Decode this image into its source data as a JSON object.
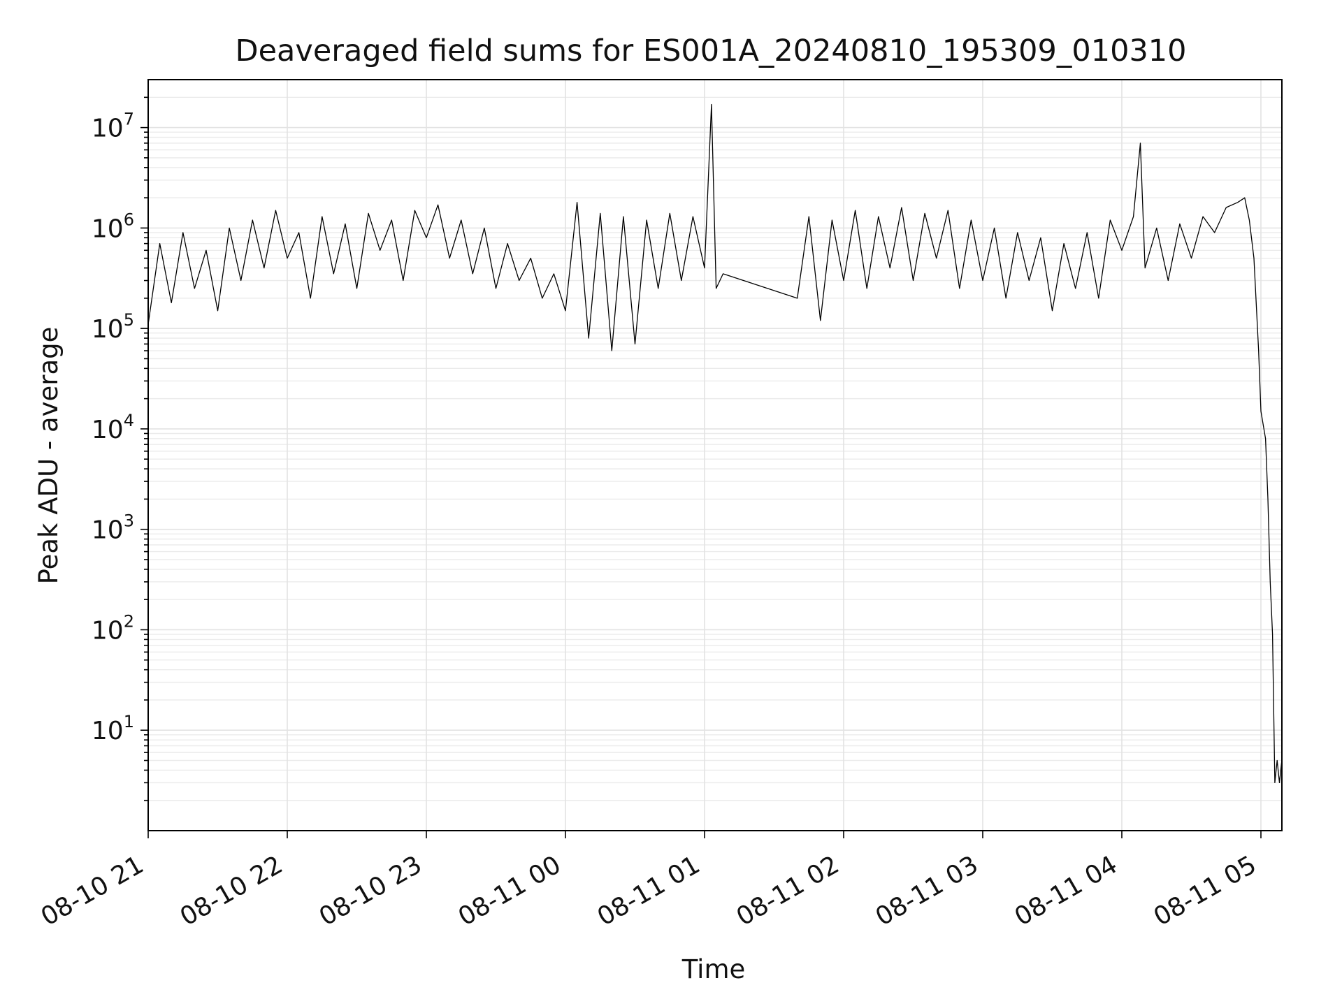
{
  "chart_data": {
    "type": "line",
    "title": "Deaveraged field sums for ES001A_20240810_195309_010310",
    "xlabel": "Time",
    "ylabel": "Peak ADU - average",
    "yscale": "log",
    "ylim": [
      1.0,
      30000000
    ],
    "xlim": [
      "2024-08-10 21:00",
      "2024-08-11 05:09"
    ],
    "grid": "on",
    "legend": "none",
    "line_color": "#000000",
    "x_ticks": [
      "08-10 21",
      "08-10 22",
      "08-10 23",
      "08-11 00",
      "08-11 01",
      "08-11 02",
      "08-11 03",
      "08-11 04",
      "08-11 05"
    ],
    "y_ticks": [
      {
        "value": 10,
        "base": "10",
        "exp": "1"
      },
      {
        "value": 100,
        "base": "10",
        "exp": "2"
      },
      {
        "value": 1000,
        "base": "10",
        "exp": "3"
      },
      {
        "value": 10000,
        "base": "10",
        "exp": "4"
      },
      {
        "value": 100000,
        "base": "10",
        "exp": "5"
      },
      {
        "value": 1000000,
        "base": "10",
        "exp": "6"
      },
      {
        "value": 10000000,
        "base": "10",
        "exp": "7"
      }
    ],
    "series": [
      {
        "x": [
          "2024-08-10 21:00",
          "2024-08-10 21:05",
          "2024-08-10 21:10",
          "2024-08-10 21:15",
          "2024-08-10 21:20",
          "2024-08-10 21:25",
          "2024-08-10 21:30",
          "2024-08-10 21:35",
          "2024-08-10 21:40",
          "2024-08-10 21:45",
          "2024-08-10 21:50",
          "2024-08-10 21:55",
          "2024-08-10 22:00",
          "2024-08-10 22:05",
          "2024-08-10 22:10",
          "2024-08-10 22:15",
          "2024-08-10 22:20",
          "2024-08-10 22:25",
          "2024-08-10 22:30",
          "2024-08-10 22:35",
          "2024-08-10 22:40",
          "2024-08-10 22:45",
          "2024-08-10 22:50",
          "2024-08-10 22:55",
          "2024-08-10 23:00",
          "2024-08-10 23:05",
          "2024-08-10 23:10",
          "2024-08-10 23:15",
          "2024-08-10 23:20",
          "2024-08-10 23:25",
          "2024-08-10 23:30",
          "2024-08-10 23:35",
          "2024-08-10 23:40",
          "2024-08-10 23:45",
          "2024-08-10 23:50",
          "2024-08-10 23:55",
          "2024-08-11 00:00",
          "2024-08-11 00:05",
          "2024-08-11 00:10",
          "2024-08-11 00:15",
          "2024-08-11 00:20",
          "2024-08-11 00:25",
          "2024-08-11 00:30",
          "2024-08-11 00:35",
          "2024-08-11 00:40",
          "2024-08-11 00:45",
          "2024-08-11 00:50",
          "2024-08-11 00:55",
          "2024-08-11 01:00",
          "2024-08-11 01:03",
          "2024-08-11 01:05",
          "2024-08-11 01:08",
          "2024-08-11 01:40",
          "2024-08-11 01:45",
          "2024-08-11 01:50",
          "2024-08-11 01:55",
          "2024-08-11 02:00",
          "2024-08-11 02:05",
          "2024-08-11 02:10",
          "2024-08-11 02:15",
          "2024-08-11 02:20",
          "2024-08-11 02:25",
          "2024-08-11 02:30",
          "2024-08-11 02:35",
          "2024-08-11 02:40",
          "2024-08-11 02:45",
          "2024-08-11 02:50",
          "2024-08-11 02:55",
          "2024-08-11 03:00",
          "2024-08-11 03:05",
          "2024-08-11 03:10",
          "2024-08-11 03:15",
          "2024-08-11 03:20",
          "2024-08-11 03:25",
          "2024-08-11 03:30",
          "2024-08-11 03:35",
          "2024-08-11 03:40",
          "2024-08-11 03:45",
          "2024-08-11 03:50",
          "2024-08-11 03:55",
          "2024-08-11 04:00",
          "2024-08-11 04:05",
          "2024-08-11 04:08",
          "2024-08-11 04:10",
          "2024-08-11 04:15",
          "2024-08-11 04:20",
          "2024-08-11 04:25",
          "2024-08-11 04:30",
          "2024-08-11 04:35",
          "2024-08-11 04:40",
          "2024-08-11 04:45",
          "2024-08-11 04:50",
          "2024-08-11 04:53",
          "2024-08-11 04:55",
          "2024-08-11 04:57",
          "2024-08-11 04:59",
          "2024-08-11 05:00",
          "2024-08-11 05:02",
          "2024-08-11 05:03",
          "2024-08-11 05:04",
          "2024-08-11 05:05",
          "2024-08-11 05:06",
          "2024-08-11 05:07",
          "2024-08-11 05:08",
          "2024-08-11 05:09"
        ],
        "values": [
          110000,
          700000,
          180000,
          900000,
          250000,
          600000,
          150000,
          1000000,
          300000,
          1200000,
          400000,
          1500000,
          500000,
          900000,
          200000,
          1300000,
          350000,
          1100000,
          250000,
          1400000,
          600000,
          1200000,
          300000,
          1500000,
          800000,
          1700000,
          500000,
          1200000,
          350000,
          1000000,
          250000,
          700000,
          300000,
          500000,
          200000,
          350000,
          150000,
          1800000,
          80000,
          1400000,
          60000,
          1300000,
          70000,
          1200000,
          250000,
          1400000,
          300000,
          1300000,
          400000,
          17000000,
          250000,
          350000,
          200000,
          1300000,
          120000,
          1200000,
          300000,
          1500000,
          250000,
          1300000,
          400000,
          1600000,
          300000,
          1400000,
          500000,
          1500000,
          250000,
          1200000,
          300000,
          1000000,
          200000,
          900000,
          300000,
          800000,
          150000,
          700000,
          250000,
          900000,
          200000,
          1200000,
          600000,
          1300000,
          7000000,
          400000,
          1000000,
          300000,
          1100000,
          500000,
          1300000,
          900000,
          1600000,
          1800000,
          2000000,
          1200000,
          500000,
          60000,
          15000,
          8000,
          2000,
          300,
          90,
          3,
          5,
          3,
          5
        ]
      }
    ]
  }
}
